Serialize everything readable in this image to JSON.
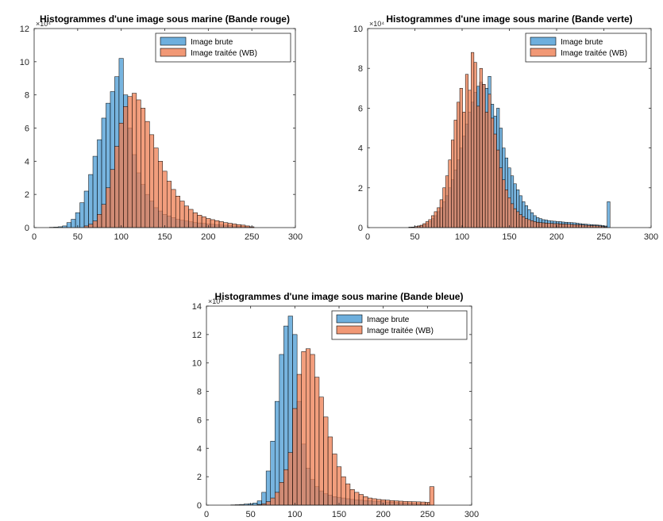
{
  "chart_data": [
    {
      "type": "bar",
      "title": "Histogrammes d'une image sous marine (Bande rouge)",
      "exponent_label": "×10⁴",
      "xlim": [
        0,
        300
      ],
      "ylim": [
        0,
        12
      ],
      "xticks": [
        0,
        50,
        100,
        150,
        200,
        250,
        300
      ],
      "yticks": [
        0,
        2,
        4,
        6,
        8,
        10,
        12
      ],
      "bin_width": 5,
      "legend_position": "top-right",
      "series": [
        {
          "name": "Image brute",
          "color": "#4A9BD4",
          "x": [
            20,
            25,
            30,
            35,
            40,
            45,
            50,
            55,
            60,
            65,
            70,
            75,
            80,
            85,
            90,
            95,
            100,
            105,
            110,
            115,
            120,
            125,
            130,
            135,
            140,
            145,
            150,
            155,
            160,
            165,
            170,
            175,
            180,
            185,
            190,
            195,
            200,
            205,
            210,
            215,
            220,
            225,
            230,
            235,
            240,
            245,
            250
          ],
          "values": [
            0.02,
            0.03,
            0.05,
            0.1,
            0.3,
            0.5,
            0.9,
            1.5,
            2.2,
            3.2,
            4.3,
            5.3,
            6.6,
            7.5,
            8.2,
            9.1,
            10.2,
            8.0,
            6.0,
            4.4,
            3.3,
            2.6,
            2.0,
            1.6,
            1.2,
            1.0,
            0.8,
            0.7,
            0.6,
            0.5,
            0.45,
            0.4,
            0.35,
            0.3,
            0.28,
            0.25,
            0.22,
            0.2,
            0.18,
            0.16,
            0.14,
            0.12,
            0.1,
            0.08,
            0.06,
            0.05,
            0.02
          ]
        },
        {
          "name": "Image traitée (WB)",
          "color": "#EE7E52",
          "x": [
            60,
            65,
            70,
            75,
            80,
            85,
            90,
            95,
            100,
            105,
            110,
            115,
            120,
            125,
            130,
            135,
            140,
            145,
            150,
            155,
            160,
            165,
            170,
            175,
            180,
            185,
            190,
            195,
            200,
            205,
            210,
            215,
            220,
            225,
            230,
            235,
            240,
            245,
            250
          ],
          "values": [
            0.1,
            0.2,
            0.4,
            0.8,
            1.4,
            2.4,
            3.5,
            4.9,
            6.3,
            7.3,
            7.9,
            8.1,
            7.7,
            7.2,
            6.4,
            5.6,
            4.8,
            4.0,
            3.4,
            2.8,
            2.3,
            1.9,
            1.6,
            1.3,
            1.1,
            0.9,
            0.75,
            0.65,
            0.55,
            0.48,
            0.42,
            0.36,
            0.3,
            0.26,
            0.22,
            0.18,
            0.15,
            0.1,
            0.05
          ]
        }
      ]
    },
    {
      "type": "bar",
      "title": "Histogrammes d'une image sous marine (Bande verte)",
      "exponent_label": "×10⁴",
      "xlim": [
        0,
        300
      ],
      "ylim": [
        0,
        10
      ],
      "xticks": [
        0,
        50,
        100,
        150,
        200,
        250,
        300
      ],
      "yticks": [
        0,
        2,
        4,
        6,
        8,
        10
      ],
      "bin_width": 3,
      "legend_position": "top-right",
      "series": [
        {
          "name": "Image brute",
          "color": "#4A9BD4",
          "x": [
            45,
            48,
            51,
            54,
            57,
            60,
            63,
            66,
            69,
            72,
            75,
            78,
            81,
            84,
            87,
            90,
            93,
            96,
            99,
            102,
            105,
            108,
            111,
            114,
            117,
            120,
            123,
            126,
            129,
            132,
            135,
            138,
            141,
            144,
            147,
            150,
            153,
            156,
            159,
            162,
            165,
            168,
            171,
            174,
            177,
            180,
            183,
            186,
            189,
            192,
            195,
            198,
            201,
            204,
            207,
            210,
            213,
            216,
            219,
            222,
            225,
            228,
            231,
            234,
            237,
            240,
            243,
            246,
            249,
            252,
            255
          ],
          "values": [
            0.02,
            0.03,
            0.05,
            0.08,
            0.1,
            0.15,
            0.2,
            0.3,
            0.45,
            0.6,
            0.8,
            1.0,
            1.3,
            1.6,
            2.0,
            2.4,
            2.9,
            3.4,
            4.0,
            4.6,
            5.2,
            5.8,
            6.3,
            6.8,
            7.1,
            7.3,
            7.2,
            7.0,
            7.6,
            6.2,
            5.6,
            6.0,
            5.0,
            4.0,
            3.5,
            3.0,
            2.6,
            2.2,
            1.9,
            1.6,
            1.3,
            1.1,
            0.9,
            0.75,
            0.6,
            0.5,
            0.45,
            0.4,
            0.38,
            0.35,
            0.33,
            0.32,
            0.3,
            0.3,
            0.28,
            0.27,
            0.26,
            0.25,
            0.24,
            0.22,
            0.2,
            0.18,
            0.17,
            0.16,
            0.15,
            0.14,
            0.13,
            0.12,
            0.1,
            0.08,
            1.3
          ]
        },
        {
          "name": "Image traitée (WB)",
          "color": "#EE7E52",
          "x": [
            45,
            48,
            51,
            54,
            57,
            60,
            63,
            66,
            69,
            72,
            75,
            78,
            81,
            84,
            87,
            90,
            93,
            96,
            99,
            102,
            105,
            108,
            111,
            114,
            117,
            120,
            123,
            126,
            129,
            132,
            135,
            138,
            141,
            144,
            147,
            150,
            153,
            156,
            159,
            162,
            165,
            168,
            171,
            174,
            177,
            180,
            183,
            186,
            189,
            192,
            195,
            198,
            201,
            204,
            207,
            210,
            213,
            216,
            219,
            222,
            225,
            228,
            231,
            234,
            237,
            240,
            243,
            246,
            249,
            252
          ],
          "values": [
            0.02,
            0.03,
            0.05,
            0.08,
            0.12,
            0.2,
            0.3,
            0.4,
            0.6,
            0.8,
            1.0,
            1.4,
            2.0,
            2.6,
            3.4,
            4.4,
            5.4,
            6.3,
            7.0,
            5.8,
            7.7,
            6.9,
            8.8,
            8.3,
            6.1,
            8.0,
            7.2,
            5.8,
            6.7,
            5.5,
            4.7,
            3.9,
            3.0,
            2.4,
            1.9,
            1.5,
            1.2,
            0.95,
            0.8,
            0.65,
            0.55,
            0.45,
            0.4,
            0.35,
            0.3,
            0.27,
            0.25,
            0.24,
            0.23,
            0.22,
            0.21,
            0.2,
            0.2,
            0.19,
            0.18,
            0.18,
            0.17,
            0.16,
            0.15,
            0.15,
            0.14,
            0.13,
            0.12,
            0.11,
            0.1,
            0.1,
            0.09,
            0.08,
            0.06,
            0.04
          ]
        }
      ]
    },
    {
      "type": "bar",
      "title": "Histogrammes d'une image sous marine (Bande bleue)",
      "exponent_label": "×10⁴",
      "xlim": [
        0,
        300
      ],
      "ylim": [
        0,
        14
      ],
      "xticks": [
        0,
        50,
        100,
        150,
        200,
        250,
        300
      ],
      "yticks": [
        0,
        2,
        4,
        6,
        8,
        10,
        12,
        14
      ],
      "bin_width": 5,
      "legend_position": "top-right",
      "series": [
        {
          "name": "Image brute",
          "color": "#4A9BD4",
          "x": [
            30,
            35,
            40,
            45,
            50,
            55,
            60,
            65,
            70,
            75,
            80,
            85,
            90,
            95,
            100,
            105,
            110,
            115,
            120,
            125,
            130,
            135,
            140,
            145,
            150,
            155,
            160,
            165,
            170,
            175,
            180,
            185,
            190,
            195,
            200,
            205,
            210,
            215,
            220,
            225,
            230,
            235,
            240,
            245,
            250
          ],
          "values": [
            0.02,
            0.03,
            0.05,
            0.08,
            0.1,
            0.15,
            0.3,
            0.9,
            2.4,
            4.5,
            7.3,
            10.6,
            12.6,
            13.3,
            12.0,
            7.3,
            4.3,
            2.6,
            1.8,
            1.3,
            1.0,
            0.8,
            0.7,
            0.6,
            0.55,
            0.5,
            0.45,
            0.4,
            0.38,
            0.35,
            0.32,
            0.3,
            0.28,
            0.26,
            0.24,
            0.22,
            0.2,
            0.18,
            0.16,
            0.15,
            0.13,
            0.12,
            0.1,
            0.08,
            0.05
          ]
        },
        {
          "name": "Image traitée (WB)",
          "color": "#EE7E52",
          "x": [
            60,
            65,
            70,
            75,
            80,
            85,
            90,
            95,
            100,
            105,
            110,
            115,
            120,
            125,
            130,
            135,
            140,
            145,
            150,
            155,
            160,
            165,
            170,
            175,
            180,
            185,
            190,
            195,
            200,
            205,
            210,
            215,
            220,
            225,
            230,
            235,
            240,
            245,
            250,
            255
          ],
          "values": [
            0.05,
            0.1,
            0.25,
            0.5,
            0.9,
            1.6,
            2.5,
            3.7,
            6.8,
            9.2,
            10.8,
            11.0,
            10.6,
            9.0,
            7.6,
            6.2,
            4.8,
            3.6,
            2.7,
            2.0,
            1.5,
            1.1,
            0.9,
            0.75,
            0.6,
            0.5,
            0.45,
            0.4,
            0.38,
            0.35,
            0.32,
            0.3,
            0.28,
            0.26,
            0.25,
            0.24,
            0.23,
            0.22,
            0.2,
            1.3
          ]
        }
      ]
    }
  ]
}
